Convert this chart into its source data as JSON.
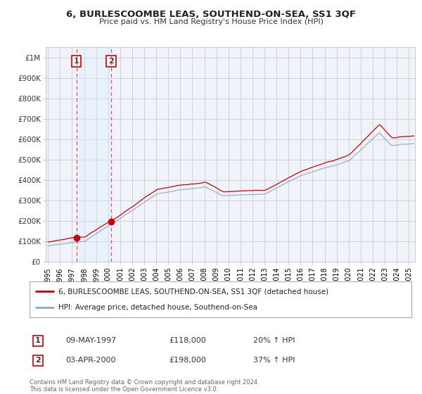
{
  "title": "6, BURLESCOOMBE LEAS, SOUTHEND-ON-SEA, SS1 3QF",
  "subtitle": "Price paid vs. HM Land Registry's House Price Index (HPI)",
  "legend_line1": "6, BURLESCOOMBE LEAS, SOUTHEND-ON-SEA, SS1 3QF (detached house)",
  "legend_line2": "HPI: Average price, detached house, Southend-on-Sea",
  "transaction1_date": "09-MAY-1997",
  "transaction1_price": "£118,000",
  "transaction1_hpi": "20% ↑ HPI",
  "transaction1_year": 1997.36,
  "transaction1_value": 118000,
  "transaction2_date": "03-APR-2000",
  "transaction2_price": "£198,000",
  "transaction2_hpi": "37% ↑ HPI",
  "transaction2_year": 2000.25,
  "transaction2_value": 198000,
  "footer": "Contains HM Land Registry data © Crown copyright and database right 2024.\nThis data is licensed under the Open Government Licence v3.0.",
  "line1_color": "#cc0000",
  "line2_color": "#88aacc",
  "grid_color": "#cccccc",
  "background_color": "#ffffff",
  "plot_bg_color": "#f0f4fa",
  "vline_color": "#dd4444",
  "span_color": "#ddeeff",
  "marker_color": "#cc0000",
  "ylim_min": 0,
  "ylim_max": 1050000,
  "xlim_min": 1994.8,
  "xlim_max": 2025.5
}
